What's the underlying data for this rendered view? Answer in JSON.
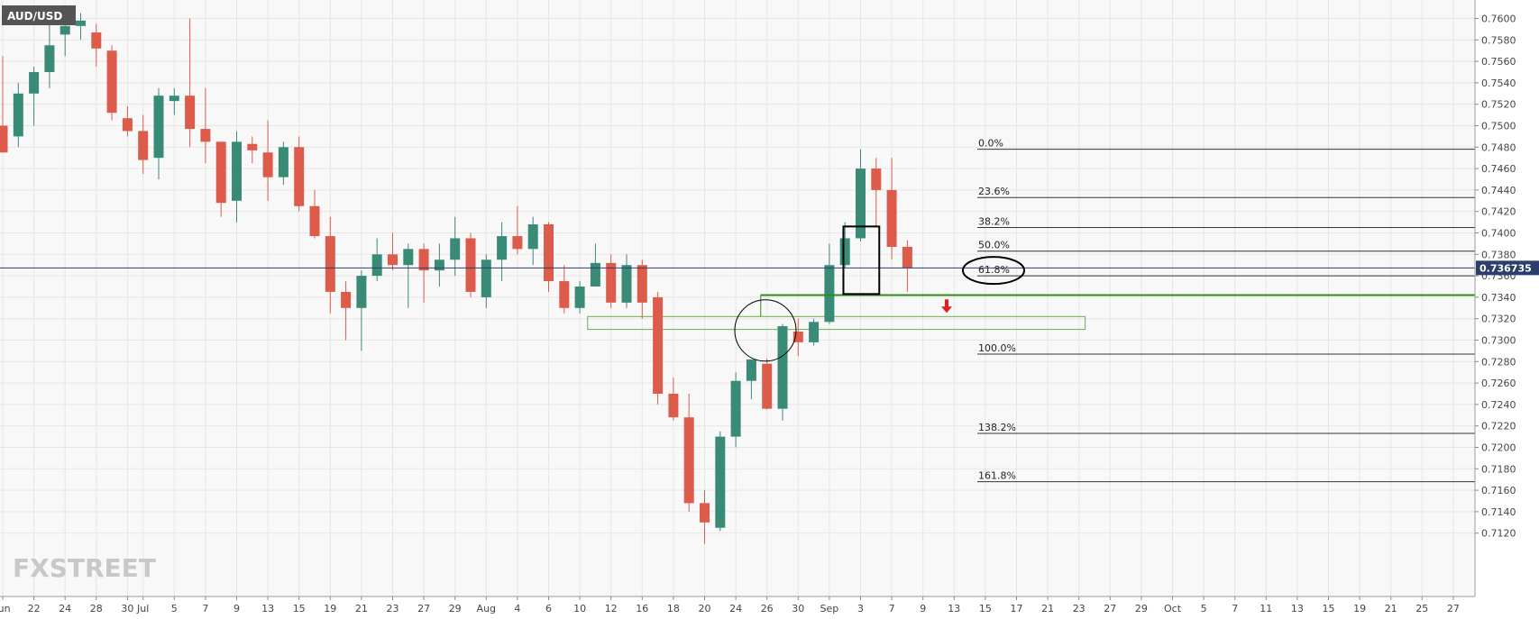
{
  "header": {
    "symbol": "AUD/USD"
  },
  "watermark": {
    "text": "FXSTREET"
  },
  "chart_data": {
    "type": "candlestick",
    "title": "AUD/USD",
    "ylim": [
      0.711,
      0.7615
    ],
    "y_ticks": [
      "0.7600",
      "0.7580",
      "0.7560",
      "0.7540",
      "0.7520",
      "0.7500",
      "0.7480",
      "0.7460",
      "0.7440",
      "0.7420",
      "0.7400",
      "0.7380",
      "0.7360",
      "0.7340",
      "0.7320",
      "0.7300",
      "0.7280",
      "0.7260",
      "0.7240",
      "0.7220",
      "0.7200",
      "0.7180",
      "0.7160",
      "0.7140",
      "0.7120"
    ],
    "x_ticks": [
      {
        "label": "Jun",
        "slot": 0
      },
      {
        "label": "22",
        "slot": 2
      },
      {
        "label": "24",
        "slot": 4
      },
      {
        "label": "28",
        "slot": 6
      },
      {
        "label": "30",
        "slot": 8
      },
      {
        "label": "Jul",
        "slot": 9
      },
      {
        "label": "5",
        "slot": 11
      },
      {
        "label": "7",
        "slot": 13
      },
      {
        "label": "9",
        "slot": 15
      },
      {
        "label": "13",
        "slot": 17
      },
      {
        "label": "15",
        "slot": 19
      },
      {
        "label": "19",
        "slot": 21
      },
      {
        "label": "21",
        "slot": 23
      },
      {
        "label": "23",
        "slot": 25
      },
      {
        "label": "27",
        "slot": 27
      },
      {
        "label": "29",
        "slot": 29
      },
      {
        "label": "Aug",
        "slot": 31
      },
      {
        "label": "4",
        "slot": 33
      },
      {
        "label": "6",
        "slot": 35
      },
      {
        "label": "10",
        "slot": 37
      },
      {
        "label": "12",
        "slot": 39
      },
      {
        "label": "16",
        "slot": 41
      },
      {
        "label": "18",
        "slot": 43
      },
      {
        "label": "20",
        "slot": 45
      },
      {
        "label": "24",
        "slot": 47
      },
      {
        "label": "26",
        "slot": 49
      },
      {
        "label": "30",
        "slot": 51
      },
      {
        "label": "Sep",
        "slot": 53
      },
      {
        "label": "3",
        "slot": 55
      },
      {
        "label": "7",
        "slot": 57
      },
      {
        "label": "9",
        "slot": 59
      },
      {
        "label": "13",
        "slot": 61
      },
      {
        "label": "15",
        "slot": 63
      },
      {
        "label": "17",
        "slot": 65
      },
      {
        "label": "21",
        "slot": 67
      },
      {
        "label": "23",
        "slot": 69
      },
      {
        "label": "27",
        "slot": 71
      },
      {
        "label": "29",
        "slot": 73
      },
      {
        "label": "Oct",
        "slot": 75
      },
      {
        "label": "5",
        "slot": 77
      },
      {
        "label": "7",
        "slot": 79
      },
      {
        "label": "11",
        "slot": 81
      },
      {
        "label": "13",
        "slot": 83
      },
      {
        "label": "15",
        "slot": 85
      },
      {
        "label": "19",
        "slot": 87
      },
      {
        "label": "21",
        "slot": 89
      },
      {
        "label": "25",
        "slot": 91
      },
      {
        "label": "27",
        "slot": 93
      }
    ],
    "candles": [
      {
        "o": 0.75,
        "h": 0.7565,
        "l": 0.7475,
        "c": 0.7475
      },
      {
        "o": 0.749,
        "h": 0.754,
        "l": 0.748,
        "c": 0.753
      },
      {
        "o": 0.753,
        "h": 0.7555,
        "l": 0.75,
        "c": 0.755
      },
      {
        "o": 0.755,
        "h": 0.761,
        "l": 0.7535,
        "c": 0.7575
      },
      {
        "o": 0.7585,
        "h": 0.7605,
        "l": 0.7565,
        "c": 0.7593
      },
      {
        "o": 0.7593,
        "h": 0.7605,
        "l": 0.758,
        "c": 0.7598
      },
      {
        "o": 0.7587,
        "h": 0.7595,
        "l": 0.7555,
        "c": 0.7572
      },
      {
        "o": 0.757,
        "h": 0.7575,
        "l": 0.7505,
        "c": 0.7512
      },
      {
        "o": 0.7507,
        "h": 0.7518,
        "l": 0.749,
        "c": 0.7495
      },
      {
        "o": 0.7495,
        "h": 0.751,
        "l": 0.7455,
        "c": 0.7468
      },
      {
        "o": 0.747,
        "h": 0.7535,
        "l": 0.745,
        "c": 0.7528
      },
      {
        "o": 0.7523,
        "h": 0.7535,
        "l": 0.751,
        "c": 0.7528
      },
      {
        "o": 0.7528,
        "h": 0.76,
        "l": 0.748,
        "c": 0.7497
      },
      {
        "o": 0.7497,
        "h": 0.7535,
        "l": 0.7465,
        "c": 0.7485
      },
      {
        "o": 0.7485,
        "h": 0.7485,
        "l": 0.7415,
        "c": 0.7428
      },
      {
        "o": 0.743,
        "h": 0.7495,
        "l": 0.741,
        "c": 0.7485
      },
      {
        "o": 0.7483,
        "h": 0.749,
        "l": 0.7465,
        "c": 0.7477
      },
      {
        "o": 0.7475,
        "h": 0.7505,
        "l": 0.743,
        "c": 0.7452
      },
      {
        "o": 0.7452,
        "h": 0.7485,
        "l": 0.7445,
        "c": 0.748
      },
      {
        "o": 0.748,
        "h": 0.749,
        "l": 0.742,
        "c": 0.7425
      },
      {
        "o": 0.7425,
        "h": 0.744,
        "l": 0.7395,
        "c": 0.7397
      },
      {
        "o": 0.7397,
        "h": 0.7415,
        "l": 0.7325,
        "c": 0.7345
      },
      {
        "o": 0.7345,
        "h": 0.7355,
        "l": 0.73,
        "c": 0.733
      },
      {
        "o": 0.733,
        "h": 0.7365,
        "l": 0.729,
        "c": 0.736
      },
      {
        "o": 0.736,
        "h": 0.7395,
        "l": 0.7355,
        "c": 0.738
      },
      {
        "o": 0.738,
        "h": 0.74,
        "l": 0.7365,
        "c": 0.737
      },
      {
        "o": 0.737,
        "h": 0.739,
        "l": 0.733,
        "c": 0.7385
      },
      {
        "o": 0.7385,
        "h": 0.739,
        "l": 0.7335,
        "c": 0.7365
      },
      {
        "o": 0.7365,
        "h": 0.739,
        "l": 0.735,
        "c": 0.7375
      },
      {
        "o": 0.7375,
        "h": 0.7415,
        "l": 0.736,
        "c": 0.7395
      },
      {
        "o": 0.7395,
        "h": 0.74,
        "l": 0.734,
        "c": 0.7345
      },
      {
        "o": 0.734,
        "h": 0.738,
        "l": 0.733,
        "c": 0.7375
      },
      {
        "o": 0.7375,
        "h": 0.741,
        "l": 0.7355,
        "c": 0.7397
      },
      {
        "o": 0.7397,
        "h": 0.7425,
        "l": 0.738,
        "c": 0.7385
      },
      {
        "o": 0.7385,
        "h": 0.7415,
        "l": 0.737,
        "c": 0.7408
      },
      {
        "o": 0.7408,
        "h": 0.741,
        "l": 0.7345,
        "c": 0.7355
      },
      {
        "o": 0.7355,
        "h": 0.737,
        "l": 0.7325,
        "c": 0.733
      },
      {
        "o": 0.733,
        "h": 0.7355,
        "l": 0.7325,
        "c": 0.735
      },
      {
        "o": 0.735,
        "h": 0.739,
        "l": 0.735,
        "c": 0.7372
      },
      {
        "o": 0.7372,
        "h": 0.738,
        "l": 0.733,
        "c": 0.7335
      },
      {
        "o": 0.7335,
        "h": 0.738,
        "l": 0.733,
        "c": 0.737
      },
      {
        "o": 0.737,
        "h": 0.7375,
        "l": 0.732,
        "c": 0.7335
      },
      {
        "o": 0.734,
        "h": 0.7345,
        "l": 0.724,
        "c": 0.725
      },
      {
        "o": 0.725,
        "h": 0.7265,
        "l": 0.7225,
        "c": 0.7228
      },
      {
        "o": 0.7228,
        "h": 0.725,
        "l": 0.714,
        "c": 0.7148
      },
      {
        "o": 0.7148,
        "h": 0.716,
        "l": 0.711,
        "c": 0.713
      },
      {
        "o": 0.7125,
        "h": 0.7215,
        "l": 0.7122,
        "c": 0.721
      },
      {
        "o": 0.721,
        "h": 0.727,
        "l": 0.72,
        "c": 0.7262
      },
      {
        "o": 0.7262,
        "h": 0.7282,
        "l": 0.7245,
        "c": 0.7282
      },
      {
        "o": 0.7278,
        "h": 0.7283,
        "l": 0.7235,
        "c": 0.7236
      },
      {
        "o": 0.7236,
        "h": 0.7315,
        "l": 0.7225,
        "c": 0.7313
      },
      {
        "o": 0.7308,
        "h": 0.732,
        "l": 0.7285,
        "c": 0.7298
      },
      {
        "o": 0.7298,
        "h": 0.732,
        "l": 0.7295,
        "c": 0.7317
      },
      {
        "o": 0.7317,
        "h": 0.739,
        "l": 0.7315,
        "c": 0.737
      },
      {
        "o": 0.737,
        "h": 0.741,
        "l": 0.7367,
        "c": 0.7395
      },
      {
        "o": 0.7395,
        "h": 0.7478,
        "l": 0.7392,
        "c": 0.746
      },
      {
        "o": 0.746,
        "h": 0.747,
        "l": 0.7405,
        "c": 0.744
      },
      {
        "o": 0.744,
        "h": 0.747,
        "l": 0.7375,
        "c": 0.7387
      },
      {
        "o": 0.7387,
        "h": 0.7393,
        "l": 0.7345,
        "c": 0.7367
      }
    ],
    "current_price": {
      "value": 0.736735,
      "label": "0.736735"
    },
    "fibonacci": [
      {
        "label": "0.0%",
        "value": 0.7478
      },
      {
        "label": "23.6%",
        "value": 0.7433
      },
      {
        "label": "38.2%",
        "value": 0.7405
      },
      {
        "label": "50.0%",
        "value": 0.7383
      },
      {
        "label": "61.8%",
        "value": 0.736
      },
      {
        "label": "100.0%",
        "value": 0.7287
      },
      {
        "label": "138.2%",
        "value": 0.7213
      },
      {
        "label": "161.8%",
        "value": 0.7168
      }
    ],
    "support_line": {
      "value": 0.7342,
      "color": "#2e8b1a"
    },
    "support_zone": {
      "value_top": 0.7322,
      "value_bottom": 0.731,
      "slot_start": 37.5,
      "slot_end": 69.4,
      "color": "#6ab04c"
    },
    "colors": {
      "up": "#3a8a78",
      "down": "#dd5b4b",
      "grid": "#e6e6e6",
      "price_line": "#2c3e6b",
      "price_label_bg": "#2c3e6b"
    }
  }
}
